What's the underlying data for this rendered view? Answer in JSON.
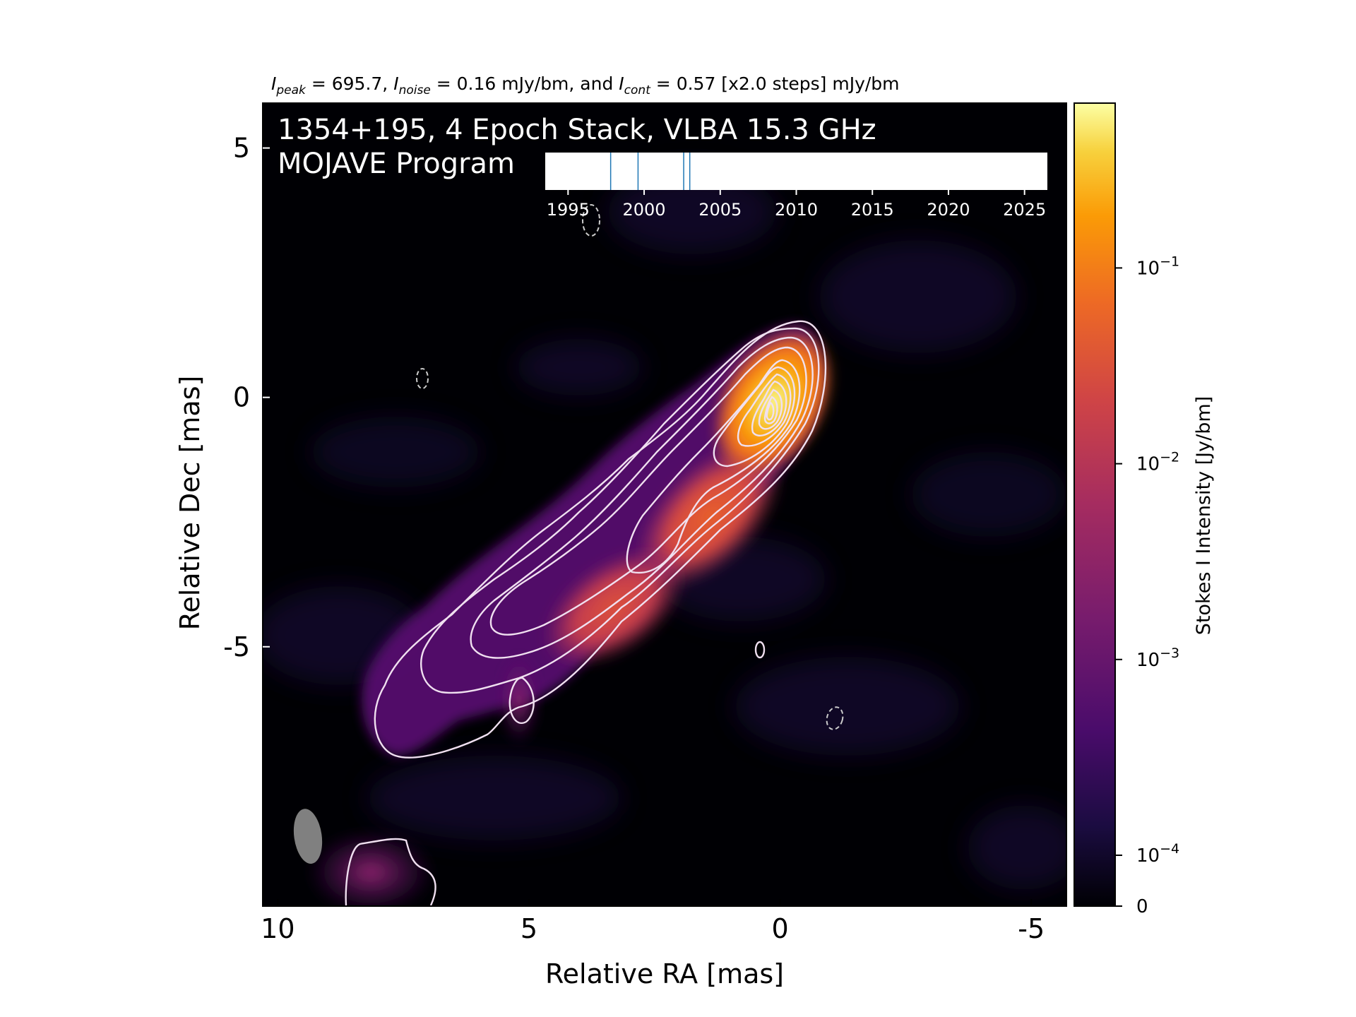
{
  "chart_data": {
    "type": "heatmap",
    "header": {
      "peak_sym": "I",
      "peak_sub": "peak",
      "peak_val": " = 695.7, ",
      "noise_sym": "I",
      "noise_sub": "noise",
      "noise_val": " = 0.16 mJy/bm, and ",
      "cont_sym": "I",
      "cont_sub": "cont",
      "cont_val": " = 0.57 [x2.0 steps] mJy/bm"
    },
    "title_line1": "1354+195, 4 Epoch Stack, VLBA 15.3 GHz",
    "title_line2": "MOJAVE Program",
    "xlabel": "Relative RA [mas]",
    "ylabel": "Relative Dec [mas]",
    "xlim": [
      10.3,
      -5.7
    ],
    "ylim": [
      -10.2,
      5.9
    ],
    "x_ticks": [
      10,
      5,
      0,
      -5
    ],
    "x_tick_labels": [
      "10",
      "5",
      "0",
      "-5"
    ],
    "y_ticks": [
      5,
      0,
      -5
    ],
    "y_tick_labels": [
      "5",
      "0",
      "-5"
    ],
    "colormap": "inferno",
    "colorbar": {
      "label": "Stokes I Intensity [Jy/bm]",
      "scale": "log",
      "ticks": [
        {
          "value": 0.1,
          "base": "10",
          "exp": "−1"
        },
        {
          "value": 0.01,
          "base": "10",
          "exp": "−2"
        },
        {
          "value": 0.001,
          "base": "10",
          "exp": "−3"
        },
        {
          "value": 0.0001,
          "base": "10",
          "exp": "−4"
        },
        {
          "value": 0,
          "base": "0",
          "exp": ""
        }
      ]
    },
    "epoch_timeline": {
      "xlim": [
        1993.5,
        2026.5
      ],
      "ticks": [
        1995,
        2000,
        2005,
        2010,
        2015,
        2020,
        2025
      ],
      "tick_labels": [
        "1995",
        "2000",
        "2005",
        "2010",
        "2015",
        "2020",
        "2025"
      ],
      "epochs": [
        1997.8,
        1999.6,
        2002.6,
        2003.0
      ],
      "epoch_color": "#1f77b4"
    },
    "components": [
      {
        "ra": 0.0,
        "dec": 0.0,
        "peak_jy": 0.6957
      },
      {
        "ra": 1.9,
        "dec": -2.6,
        "peak_jy": 0.02
      },
      {
        "ra": 3.4,
        "dec": -4.3,
        "peak_jy": 0.012
      },
      {
        "ra": 5.2,
        "dec": -5.8,
        "peak_jy": 0.0025
      },
      {
        "ra": 8.1,
        "dec": -9.2,
        "peak_jy": 0.0008
      }
    ],
    "beam": {
      "ra": 9.4,
      "dec": -8.8,
      "major_mas": 1.1,
      "minor_mas": 0.55,
      "pa_deg": -8,
      "color": "#808080"
    },
    "contour_color": "#f0e0f0",
    "negative_contour_color": "#cccccc"
  }
}
